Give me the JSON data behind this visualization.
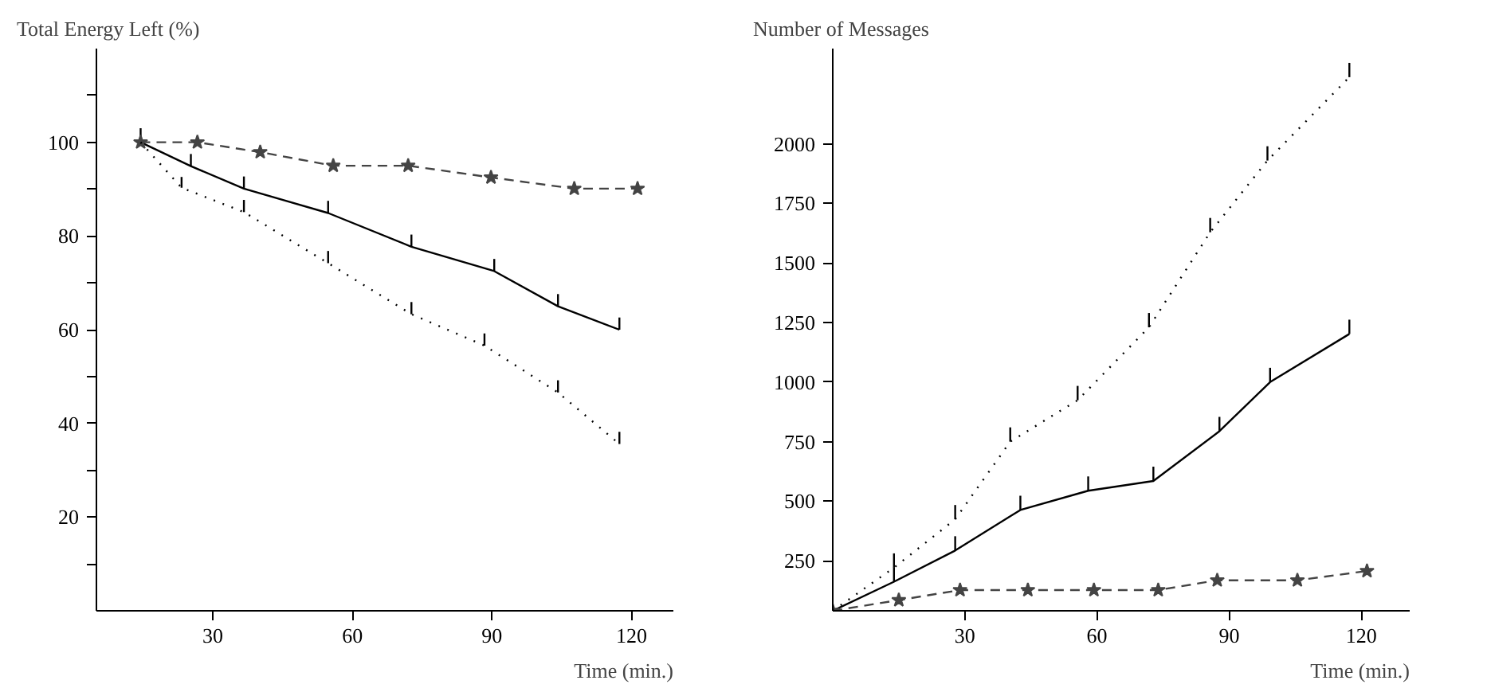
{
  "chart_data": [
    {
      "type": "line",
      "ylabel": "Total Energy Left (%)",
      "xlabel": "Time (min.)",
      "xlim": [
        5,
        129
      ],
      "ylim": [
        0,
        120
      ],
      "xticks": [
        30,
        60,
        90,
        120
      ],
      "yticks": [
        {
          "value": 10,
          "label": null
        },
        20,
        {
          "value": 30,
          "label": null
        },
        40,
        {
          "value": 50,
          "label": null
        },
        60,
        {
          "value": 70,
          "label": null
        },
        80,
        {
          "value": 90,
          "label": null
        },
        100,
        {
          "value": 110,
          "label": null
        }
      ],
      "grid": false,
      "series": [
        {
          "color": "#000000",
          "line_style": "solid",
          "marker": "none",
          "x": [
            14.5,
            25.3,
            36.7,
            54.8,
            72.7,
            90.5,
            104.2,
            117.4
          ],
          "values": [
            100,
            94.9,
            90.1,
            84.9,
            77.7,
            72.5,
            65,
            60
          ],
          "errors": [
            [
              100,
              103
            ],
            [
              94.9,
              97.5
            ],
            [
              90.1,
              92.7
            ],
            [
              84.9,
              87.5
            ],
            [
              77.7,
              80.3
            ],
            [
              72.5,
              75.1
            ],
            [
              65,
              67.6
            ],
            [
              60,
              62.6
            ]
          ]
        },
        {
          "color": "#444444",
          "line_style": "dashed",
          "marker": "star",
          "x": [
            14.5,
            26.7,
            40.2,
            55.9,
            72,
            89.8,
            107.7,
            121.3
          ],
          "values": [
            100,
            100,
            97.9,
            95,
            95,
            92.5,
            90.1,
            90.1
          ]
        },
        {
          "color": "#000000",
          "line_style": "dotted",
          "marker": "none",
          "x": [
            14.5,
            23.3,
            36.7,
            54.8,
            72.7,
            88.4,
            104.2,
            117.4
          ],
          "values": [
            100,
            90.3,
            85.1,
            74.2,
            63.3,
            56.6,
            46.6,
            35.6
          ],
          "errors": [
            null,
            [
              90.3,
              92.6
            ],
            [
              85.1,
              87.7
            ],
            [
              74.2,
              76.8
            ],
            [
              63.3,
              65.9
            ],
            [
              56.6,
              59.2
            ],
            [
              46.6,
              49.2
            ],
            [
              35.6,
              38.2
            ]
          ]
        }
      ]
    },
    {
      "type": "line",
      "ylabel": "Number  of Messages",
      "xlabel": "Time (min.)",
      "xlim": [
        0,
        131
      ],
      "ylim": [
        40,
        2400
      ],
      "xticks": [
        30,
        60,
        90,
        120
      ],
      "yticks": [
        250,
        500,
        750,
        1000,
        1250,
        1500,
        1750,
        2000
      ],
      "grid": false,
      "series": [
        {
          "color": "#000000",
          "line_style": "solid",
          "marker": "none",
          "x": [
            0,
            13.9,
            27.8,
            42.6,
            58.0,
            72.8,
            87.8,
            99.3,
            117.3
          ],
          "values": [
            40,
            162,
            293,
            463,
            544,
            585,
            794,
            1000,
            1202
          ],
          "errors": [
            null,
            [
              162,
              222
            ],
            [
              293,
              353
            ],
            [
              463,
              523
            ],
            [
              544,
              604
            ],
            [
              585,
              645
            ],
            [
              794,
              854
            ],
            [
              1000,
              1060
            ],
            [
              1202,
              1262
            ]
          ]
        },
        {
          "color": "#444444",
          "line_style": "dashed",
          "marker": "star",
          "x": [
            0,
            15,
            28.9,
            44.3,
            59.3,
            73.9,
            87.3,
            105.5,
            121.3
          ],
          "values": [
            40,
            85,
            127,
            127,
            127,
            127,
            168,
            168,
            207
          ]
        },
        {
          "color": "#000000",
          "line_style": "dotted",
          "marker": "none",
          "x": [
            0,
            13.9,
            27.8,
            40.3,
            55.6,
            71.8,
            85.7,
            98.7,
            117.3
          ],
          "values": [
            40,
            221,
            424,
            750,
            924,
            1230,
            1629,
            1930,
            2280
          ],
          "errors": [
            null,
            [
              221,
              281
            ],
            [
              424,
              484
            ],
            [
              750,
              810
            ],
            [
              924,
              984
            ],
            [
              1230,
              1290
            ],
            [
              1629,
              1689
            ],
            [
              1930,
              1990
            ],
            [
              2280,
              2340
            ]
          ]
        }
      ]
    }
  ]
}
